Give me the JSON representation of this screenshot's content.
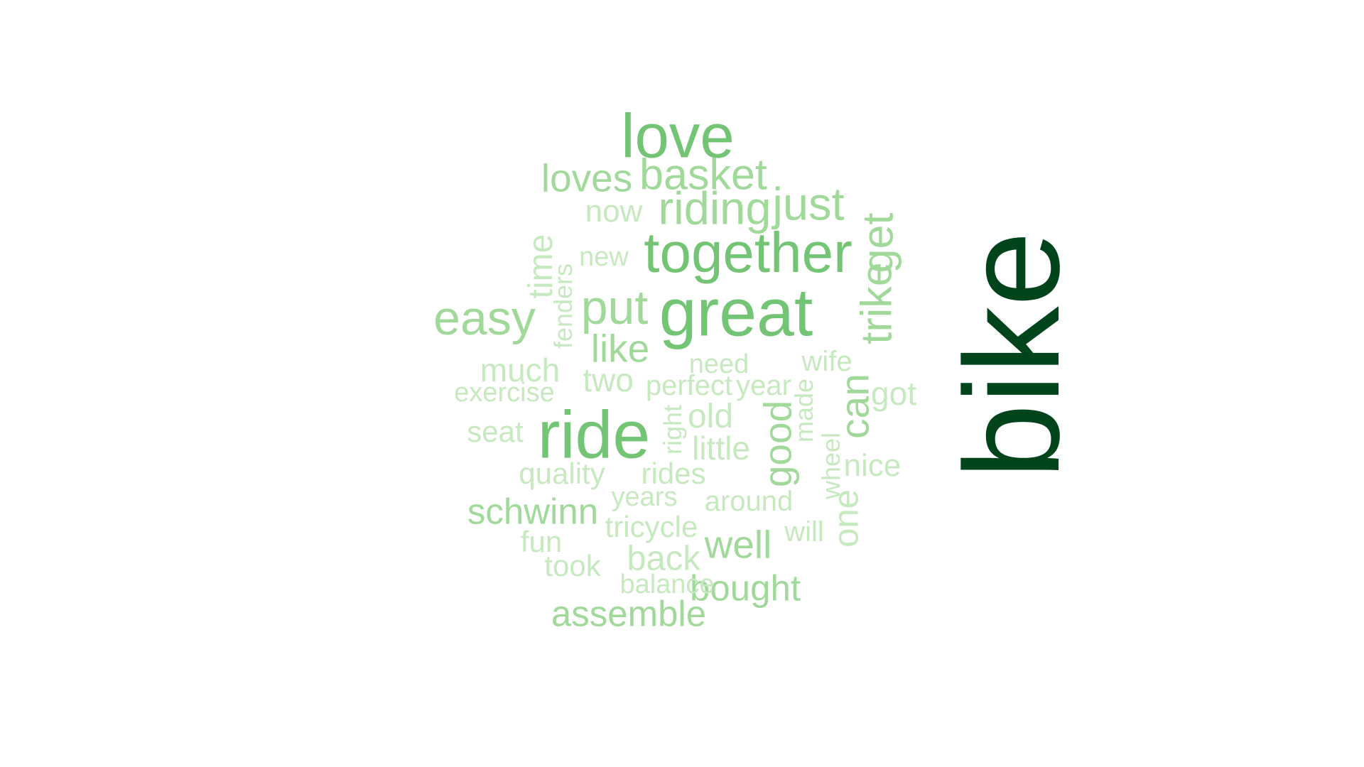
{
  "colors": {
    "background": "#ffffff",
    "darkest": "#00441b",
    "level2": "#74c476",
    "level3": "#a1d99b",
    "lightest": "#c7e9c0"
  },
  "words": [
    {
      "text": "bike",
      "weight": 1.0,
      "shade": "darkest",
      "rotated": true
    },
    {
      "text": "love",
      "weight": 0.46,
      "shade": "level2",
      "rotated": false
    },
    {
      "text": "great",
      "weight": 0.5,
      "shade": "level2",
      "rotated": false
    },
    {
      "text": "ride",
      "weight": 0.5,
      "shade": "level2",
      "rotated": false
    },
    {
      "text": "together",
      "weight": 0.42,
      "shade": "level2",
      "rotated": false
    },
    {
      "text": "easy",
      "weight": 0.36,
      "shade": "level3",
      "rotated": false
    },
    {
      "text": "put",
      "weight": 0.36,
      "shade": "level3",
      "rotated": false
    },
    {
      "text": "just",
      "weight": 0.34,
      "shade": "level3",
      "rotated": false
    },
    {
      "text": "riding",
      "weight": 0.34,
      "shade": "level3",
      "rotated": false
    },
    {
      "text": "trike",
      "weight": 0.32,
      "shade": "level3",
      "rotated": true
    },
    {
      "text": "get",
      "weight": 0.32,
      "shade": "level3",
      "rotated": true
    },
    {
      "text": "basket",
      "weight": 0.32,
      "shade": "level3",
      "rotated": false
    },
    {
      "text": "loves",
      "weight": 0.29,
      "shade": "level3",
      "rotated": false
    },
    {
      "text": "good",
      "weight": 0.29,
      "shade": "level3",
      "rotated": true
    },
    {
      "text": "can",
      "weight": 0.3,
      "shade": "level3",
      "rotated": true
    },
    {
      "text": "well",
      "weight": 0.29,
      "shade": "level3",
      "rotated": false
    },
    {
      "text": "like",
      "weight": 0.29,
      "shade": "level3",
      "rotated": false
    },
    {
      "text": "schwinn",
      "weight": 0.27,
      "shade": "level3",
      "rotated": false
    },
    {
      "text": "assemble",
      "weight": 0.27,
      "shade": "level3",
      "rotated": false
    },
    {
      "text": "bought",
      "weight": 0.27,
      "shade": "level3",
      "rotated": false
    },
    {
      "text": "time",
      "weight": 0.25,
      "shade": "lightest",
      "rotated": true
    },
    {
      "text": "back",
      "weight": 0.26,
      "shade": "lightest",
      "rotated": false
    },
    {
      "text": "one",
      "weight": 0.26,
      "shade": "lightest",
      "rotated": true
    },
    {
      "text": "old",
      "weight": 0.25,
      "shade": "lightest",
      "rotated": false
    },
    {
      "text": "much",
      "weight": 0.24,
      "shade": "lightest",
      "rotated": false
    },
    {
      "text": "two",
      "weight": 0.24,
      "shade": "lightest",
      "rotated": false
    },
    {
      "text": "got",
      "weight": 0.24,
      "shade": "lightest",
      "rotated": false
    },
    {
      "text": "little",
      "weight": 0.24,
      "shade": "lightest",
      "rotated": false
    },
    {
      "text": "nice",
      "weight": 0.23,
      "shade": "lightest",
      "rotated": false
    },
    {
      "text": "now",
      "weight": 0.23,
      "shade": "lightest",
      "rotated": false
    },
    {
      "text": "rides",
      "weight": 0.22,
      "shade": "lightest",
      "rotated": false
    },
    {
      "text": "quality",
      "weight": 0.22,
      "shade": "lightest",
      "rotated": false
    },
    {
      "text": "seat",
      "weight": 0.22,
      "shade": "lightest",
      "rotated": false
    },
    {
      "text": "fun",
      "weight": 0.22,
      "shade": "lightest",
      "rotated": false
    },
    {
      "text": "took",
      "weight": 0.22,
      "shade": "lightest",
      "rotated": false
    },
    {
      "text": "tricycle",
      "weight": 0.22,
      "shade": "lightest",
      "rotated": false
    },
    {
      "text": "around",
      "weight": 0.21,
      "shade": "lightest",
      "rotated": false
    },
    {
      "text": "perfect",
      "weight": 0.21,
      "shade": "lightest",
      "rotated": false
    },
    {
      "text": "year",
      "weight": 0.21,
      "shade": "lightest",
      "rotated": false
    },
    {
      "text": "wife",
      "weight": 0.21,
      "shade": "lightest",
      "rotated": false
    },
    {
      "text": "will",
      "weight": 0.21,
      "shade": "lightest",
      "rotated": false
    },
    {
      "text": "need",
      "weight": 0.2,
      "shade": "lightest",
      "rotated": false
    },
    {
      "text": "years",
      "weight": 0.2,
      "shade": "lightest",
      "rotated": false
    },
    {
      "text": "new",
      "weight": 0.2,
      "shade": "lightest",
      "rotated": false
    },
    {
      "text": "exercise",
      "weight": 0.2,
      "shade": "lightest",
      "rotated": false
    },
    {
      "text": "balance",
      "weight": 0.2,
      "shade": "lightest",
      "rotated": false
    },
    {
      "text": "fenders",
      "weight": 0.19,
      "shade": "lightest",
      "rotated": true
    },
    {
      "text": "made",
      "weight": 0.19,
      "shade": "lightest",
      "rotated": true
    },
    {
      "text": "right",
      "weight": 0.19,
      "shade": "lightest",
      "rotated": true
    },
    {
      "text": "wheel",
      "weight": 0.19,
      "shade": "lightest",
      "rotated": true
    }
  ]
}
